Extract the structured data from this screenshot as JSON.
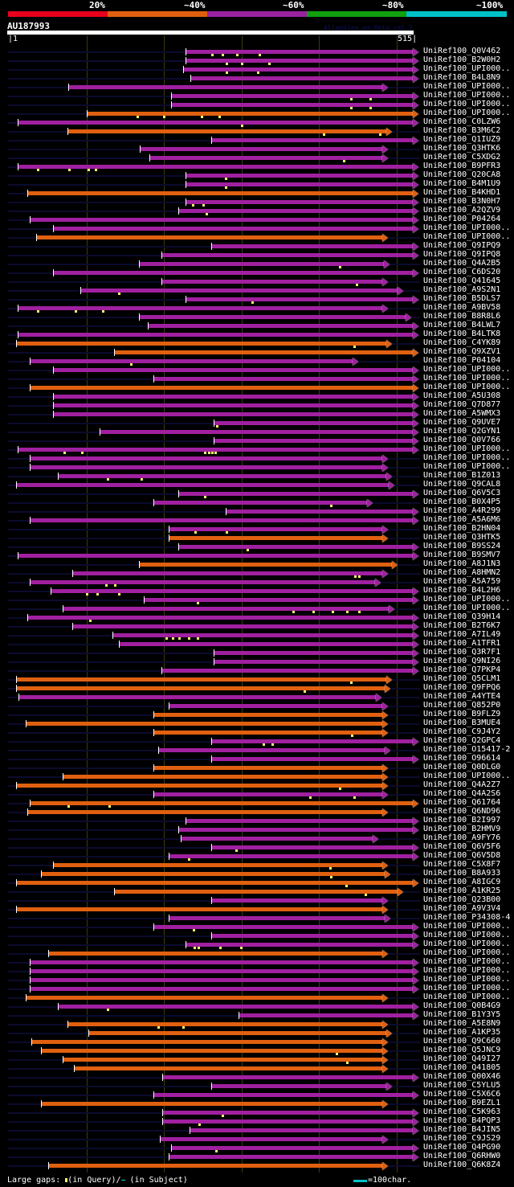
{
  "coverage_legend": {
    "labels": [
      "20%",
      "~40%",
      "~60%",
      "~80%",
      "~100%"
    ],
    "colors": [
      "#e8001c",
      "#e06010",
      "#9a22a0",
      "#10a010",
      "#00c0c8"
    ]
  },
  "query": {
    "id": "AU187993",
    "version": "AlignView.pm Beta rel.7",
    "start": "1",
    "end": "515",
    "length": 515
  },
  "colors": {
    "orange": "#e06010",
    "purple": "#a020a0",
    "track": "#0b0b2e",
    "gap": "#f8f070"
  },
  "hits": [
    {
      "label": "UniRef100_Q0V462",
      "start": 226,
      "end": 514,
      "color": "purple",
      "gaps": [
        260,
        273,
        291,
        320
      ]
    },
    {
      "label": "UniRef100_B2W0H2",
      "start": 226,
      "end": 514,
      "color": "purple",
      "gaps": [
        278,
        297,
        332
      ]
    },
    {
      "label": "UniRef100_UPI000..",
      "start": 223,
      "end": 514,
      "color": "purple",
      "gaps": [
        278,
        318
      ]
    },
    {
      "label": "UniRef100_B4L8N9",
      "start": 232,
      "end": 514,
      "color": "purple",
      "gaps": []
    },
    {
      "label": "UniRef100_UPI000..",
      "start": 77,
      "end": 475,
      "color": "purple",
      "gaps": []
    },
    {
      "label": "UniRef100_UPI000..",
      "start": 208,
      "end": 514,
      "color": "purple",
      "gaps": [
        436,
        460
      ]
    },
    {
      "label": "UniRef100_UPI000..",
      "start": 208,
      "end": 514,
      "color": "purple",
      "gaps": [
        436,
        460
      ]
    },
    {
      "label": "UniRef100_UPI000..",
      "start": 101,
      "end": 514,
      "color": "orange",
      "gaps": [
        165,
        198,
        246,
        269
      ]
    },
    {
      "label": "UniRef100_C0LZW6",
      "start": 13,
      "end": 514,
      "color": "purple",
      "gaps": [
        297
      ]
    },
    {
      "label": "UniRef100_B3M6C2",
      "start": 76,
      "end": 480,
      "color": "orange",
      "gaps": [
        401,
        472
      ]
    },
    {
      "label": "UniRef100_Q1IUZ9",
      "start": 259,
      "end": 514,
      "color": "purple",
      "gaps": []
    },
    {
      "label": "UniRef100_Q3HTK6",
      "start": 168,
      "end": 475,
      "color": "purple",
      "gaps": []
    },
    {
      "label": "UniRef100_C5XDG2",
      "start": 180,
      "end": 475,
      "color": "purple",
      "gaps": [
        426
      ]
    },
    {
      "label": "UniRef100_B9PFR3",
      "start": 13,
      "end": 514,
      "color": "purple",
      "gaps": [
        39,
        78,
        103,
        112
      ]
    },
    {
      "label": "UniRef100_Q20CA8",
      "start": 226,
      "end": 514,
      "color": "purple",
      "gaps": [
        277
      ]
    },
    {
      "label": "UniRef100_B4M1U9",
      "start": 226,
      "end": 514,
      "color": "purple",
      "gaps": [
        277
      ]
    },
    {
      "label": "UniRef100_B4KHD1",
      "start": 25,
      "end": 514,
      "color": "orange",
      "gaps": []
    },
    {
      "label": "UniRef100_B3N0H7",
      "start": 226,
      "end": 514,
      "color": "purple",
      "gaps": [
        235,
        248
      ]
    },
    {
      "label": "UniRef100_A2QZV9",
      "start": 217,
      "end": 514,
      "color": "purple",
      "gaps": [
        252
      ]
    },
    {
      "label": "UniRef100_P04264",
      "start": 28,
      "end": 514,
      "color": "purple",
      "gaps": []
    },
    {
      "label": "UniRef100_UPI000..",
      "start": 58,
      "end": 514,
      "color": "purple",
      "gaps": []
    },
    {
      "label": "UniRef100_UPI000..",
      "start": 37,
      "end": 475,
      "color": "orange",
      "gaps": []
    },
    {
      "label": "UniRef100_Q9IPQ9",
      "start": 259,
      "end": 514,
      "color": "purple",
      "gaps": []
    },
    {
      "label": "UniRef100_Q9IPQ8",
      "start": 195,
      "end": 514,
      "color": "purple",
      "gaps": []
    },
    {
      "label": "UniRef100_Q4A2B5",
      "start": 167,
      "end": 477,
      "color": "purple",
      "gaps": [
        421
      ]
    },
    {
      "label": "UniRef100_C6DS20",
      "start": 58,
      "end": 514,
      "color": "purple",
      "gaps": []
    },
    {
      "label": "UniRef100_Q41645",
      "start": 195,
      "end": 475,
      "color": "purple",
      "gaps": [
        443
      ]
    },
    {
      "label": "UniRef100_A9S2N1",
      "start": 93,
      "end": 495,
      "color": "purple",
      "gaps": [
        141
      ]
    },
    {
      "label": "UniRef100_B5DLS7",
      "start": 226,
      "end": 514,
      "color": "purple",
      "gaps": [
        310
      ]
    },
    {
      "label": "UniRef100_A9BV58",
      "start": 13,
      "end": 475,
      "color": "purple",
      "gaps": [
        39,
        86,
        121
      ]
    },
    {
      "label": "UniRef100_B8R8L6",
      "start": 167,
      "end": 505,
      "color": "purple",
      "gaps": []
    },
    {
      "label": "UniRef100_B4LWL7",
      "start": 178,
      "end": 514,
      "color": "purple",
      "gaps": []
    },
    {
      "label": "UniRef100_B4LTK8",
      "start": 13,
      "end": 514,
      "color": "purple",
      "gaps": []
    },
    {
      "label": "UniRef100_C4YK89",
      "start": 11,
      "end": 480,
      "color": "orange",
      "gaps": [
        440
      ]
    },
    {
      "label": "UniRef100_Q9XZV1",
      "start": 135,
      "end": 514,
      "color": "orange",
      "gaps": []
    },
    {
      "label": "UniRef100_P04104",
      "start": 28,
      "end": 438,
      "color": "purple",
      "gaps": [
        157
      ]
    },
    {
      "label": "UniRef100_UPI000..",
      "start": 58,
      "end": 514,
      "color": "purple",
      "gaps": []
    },
    {
      "label": "UniRef100_UPI000..",
      "start": 185,
      "end": 514,
      "color": "purple",
      "gaps": []
    },
    {
      "label": "UniRef100_UPI000..",
      "start": 28,
      "end": 514,
      "color": "orange",
      "gaps": []
    },
    {
      "label": "UniRef100_A5U308",
      "start": 58,
      "end": 514,
      "color": "purple",
      "gaps": []
    },
    {
      "label": "UniRef100_Q7D877",
      "start": 58,
      "end": 514,
      "color": "purple",
      "gaps": []
    },
    {
      "label": "UniRef100_A5WMX3",
      "start": 58,
      "end": 514,
      "color": "purple",
      "gaps": []
    },
    {
      "label": "UniRef100_Q9UVE7",
      "start": 262,
      "end": 514,
      "color": "purple",
      "gaps": [
        266
      ]
    },
    {
      "label": "UniRef100_Q2GYN1",
      "start": 117,
      "end": 514,
      "color": "purple",
      "gaps": []
    },
    {
      "label": "UniRef100_Q0V766",
      "start": 262,
      "end": 514,
      "color": "purple",
      "gaps": []
    },
    {
      "label": "UniRef100_UPI000..",
      "start": 13,
      "end": 514,
      "color": "purple",
      "gaps": [
        72,
        95,
        250,
        255,
        260,
        264
      ]
    },
    {
      "label": "UniRef100_UPI000..",
      "start": 28,
      "end": 475,
      "color": "purple",
      "gaps": []
    },
    {
      "label": "UniRef100_UPI000..",
      "start": 28,
      "end": 475,
      "color": "purple",
      "gaps": []
    },
    {
      "label": "UniRef100_B1Z013",
      "start": 64,
      "end": 480,
      "color": "purple",
      "gaps": [
        127,
        170
      ]
    },
    {
      "label": "UniRef100_Q9CAL8",
      "start": 11,
      "end": 483,
      "color": "purple",
      "gaps": []
    },
    {
      "label": "UniRef100_Q6V5C3",
      "start": 217,
      "end": 514,
      "color": "purple",
      "gaps": [
        250
      ]
    },
    {
      "label": "UniRef100_B0X4P5",
      "start": 185,
      "end": 456,
      "color": "purple",
      "gaps": [
        410
      ]
    },
    {
      "label": "UniRef100_A4R299",
      "start": 277,
      "end": 514,
      "color": "purple",
      "gaps": []
    },
    {
      "label": "UniRef100_A5A6M6",
      "start": 28,
      "end": 514,
      "color": "purple",
      "gaps": []
    },
    {
      "label": "UniRef100_B2HN04",
      "start": 205,
      "end": 475,
      "color": "purple",
      "gaps": [
        238,
        278
      ]
    },
    {
      "label": "UniRef100_Q3HTK5",
      "start": 205,
      "end": 475,
      "color": "orange",
      "gaps": []
    },
    {
      "label": "UniRef100_B9SS24",
      "start": 217,
      "end": 514,
      "color": "purple",
      "gaps": [
        304
      ]
    },
    {
      "label": "UniRef100_B9SMV7",
      "start": 13,
      "end": 514,
      "color": "purple",
      "gaps": []
    },
    {
      "label": "UniRef100_A8J1N3",
      "start": 167,
      "end": 488,
      "color": "orange",
      "gaps": []
    },
    {
      "label": "UniRef100_A8HMN2",
      "start": 82,
      "end": 475,
      "color": "purple",
      "gaps": [
        441,
        446
      ]
    },
    {
      "label": "UniRef100_A5A759",
      "start": 28,
      "end": 466,
      "color": "purple",
      "gaps": [
        125,
        136
      ]
    },
    {
      "label": "UniRef100_B4L2H6",
      "start": 55,
      "end": 514,
      "color": "purple",
      "gaps": [
        101,
        114,
        141
      ]
    },
    {
      "label": "UniRef100_UPI000..",
      "start": 173,
      "end": 514,
      "color": "purple",
      "gaps": [
        241
      ]
    },
    {
      "label": "UniRef100_UPI000..",
      "start": 70,
      "end": 483,
      "color": "purple",
      "gaps": [
        362,
        388,
        412,
        431,
        446
      ]
    },
    {
      "label": "UniRef100_Q39H14",
      "start": 25,
      "end": 514,
      "color": "purple",
      "gaps": [
        105
      ]
    },
    {
      "label": "UniRef100_B2T6K7",
      "start": 82,
      "end": 514,
      "color": "purple",
      "gaps": []
    },
    {
      "label": "UniRef100_A7IL49",
      "start": 133,
      "end": 514,
      "color": "purple",
      "gaps": [
        202,
        210,
        218,
        230,
        241
      ]
    },
    {
      "label": "UniRef100_A1TFR1",
      "start": 141,
      "end": 514,
      "color": "purple",
      "gaps": []
    },
    {
      "label": "UniRef100_Q3R7F1",
      "start": 262,
      "end": 514,
      "color": "purple",
      "gaps": []
    },
    {
      "label": "UniRef100_Q9NI26",
      "start": 262,
      "end": 514,
      "color": "purple",
      "gaps": []
    },
    {
      "label": "UniRef100_Q7PKP4",
      "start": 195,
      "end": 514,
      "color": "purple",
      "gaps": []
    },
    {
      "label": "UniRef100_Q5CLM1",
      "start": 11,
      "end": 480,
      "color": "orange",
      "gaps": [
        436
      ]
    },
    {
      "label": "UniRef100_Q9FPQ6",
      "start": 11,
      "end": 478,
      "color": "orange",
      "gaps": [
        377
      ]
    },
    {
      "label": "UniRef100_A4YTE4",
      "start": 14,
      "end": 467,
      "color": "purple",
      "gaps": []
    },
    {
      "label": "UniRef100_Q852P0",
      "start": 205,
      "end": 475,
      "color": "purple",
      "gaps": []
    },
    {
      "label": "UniRef100_B9FLZ9",
      "start": 185,
      "end": 475,
      "color": "orange",
      "gaps": []
    },
    {
      "label": "UniRef100_B3MUE4",
      "start": 23,
      "end": 475,
      "color": "orange",
      "gaps": []
    },
    {
      "label": "UniRef100_C9J4Y2",
      "start": 185,
      "end": 475,
      "color": "orange",
      "gaps": [
        437
      ]
    },
    {
      "label": "UniRef100_Q2GPC4",
      "start": 259,
      "end": 514,
      "color": "purple",
      "gaps": [
        325,
        336
      ]
    },
    {
      "label": "UniRef100_O15417-2",
      "start": 191,
      "end": 478,
      "color": "purple",
      "gaps": []
    },
    {
      "label": "UniRef100_O96614",
      "start": 259,
      "end": 514,
      "color": "purple",
      "gaps": []
    },
    {
      "label": "UniRef100_Q0DLG0",
      "start": 185,
      "end": 475,
      "color": "orange",
      "gaps": []
    },
    {
      "label": "UniRef100_UPI000..",
      "start": 70,
      "end": 475,
      "color": "orange",
      "gaps": []
    },
    {
      "label": "UniRef100_Q4A2Z7",
      "start": 11,
      "end": 475,
      "color": "orange",
      "gaps": [
        421
      ]
    },
    {
      "label": "UniRef100_Q4A2S6",
      "start": 185,
      "end": 475,
      "color": "purple",
      "gaps": [
        384,
        440
      ]
    },
    {
      "label": "UniRef100_Q61764",
      "start": 28,
      "end": 514,
      "color": "orange",
      "gaps": [
        77,
        129
      ]
    },
    {
      "label": "UniRef100_Q6ND96",
      "start": 25,
      "end": 475,
      "color": "orange",
      "gaps": []
    },
    {
      "label": "UniRef100_B2I997",
      "start": 226,
      "end": 514,
      "color": "purple",
      "gaps": []
    },
    {
      "label": "UniRef100_B2HMV9",
      "start": 217,
      "end": 514,
      "color": "purple",
      "gaps": []
    },
    {
      "label": "UniRef100_A9FY76",
      "start": 220,
      "end": 463,
      "color": "purple",
      "gaps": []
    },
    {
      "label": "UniRef100_Q6V5F6",
      "start": 259,
      "end": 514,
      "color": "purple",
      "gaps": [
        290
      ]
    },
    {
      "label": "UniRef100_Q6V5D8",
      "start": 205,
      "end": 514,
      "color": "purple",
      "gaps": [
        230
      ]
    },
    {
      "label": "UniRef100_C5X8F7",
      "start": 58,
      "end": 475,
      "color": "orange",
      "gaps": [
        409
      ]
    },
    {
      "label": "UniRef100_B8A933",
      "start": 43,
      "end": 478,
      "color": "orange",
      "gaps": [
        410
      ]
    },
    {
      "label": "UniRef100_A8IGC9",
      "start": 11,
      "end": 514,
      "color": "orange",
      "gaps": [
        430
      ]
    },
    {
      "label": "UniRef100_A1KR25",
      "start": 135,
      "end": 495,
      "color": "orange",
      "gaps": [
        454
      ]
    },
    {
      "label": "UniRef100_Q23B00",
      "start": 259,
      "end": 475,
      "color": "purple",
      "gaps": []
    },
    {
      "label": "UniRef100_A9V3V4",
      "start": 11,
      "end": 475,
      "color": "orange",
      "gaps": []
    },
    {
      "label": "UniRef100_P34308-4",
      "start": 205,
      "end": 478,
      "color": "purple",
      "gaps": []
    },
    {
      "label": "UniRef100_UPI000..",
      "start": 185,
      "end": 514,
      "color": "purple",
      "gaps": [
        236
      ]
    },
    {
      "label": "UniRef100_UPI000..",
      "start": 259,
      "end": 514,
      "color": "purple",
      "gaps": []
    },
    {
      "label": "UniRef100_UPI000..",
      "start": 226,
      "end": 514,
      "color": "purple",
      "gaps": [
        237,
        242,
        270,
        296
      ]
    },
    {
      "label": "UniRef100_UPI000..",
      "start": 52,
      "end": 475,
      "color": "orange",
      "gaps": []
    },
    {
      "label": "UniRef100_UPI000..",
      "start": 28,
      "end": 514,
      "color": "purple",
      "gaps": []
    },
    {
      "label": "UniRef100_UPI000..",
      "start": 28,
      "end": 514,
      "color": "purple",
      "gaps": []
    },
    {
      "label": "UniRef100_UPI000..",
      "start": 28,
      "end": 514,
      "color": "purple",
      "gaps": []
    },
    {
      "label": "UniRef100_UPI000..",
      "start": 28,
      "end": 514,
      "color": "purple",
      "gaps": []
    },
    {
      "label": "UniRef100_UPI000..",
      "start": 23,
      "end": 475,
      "color": "orange",
      "gaps": []
    },
    {
      "label": "UniRef100_Q0B4G9",
      "start": 64,
      "end": 514,
      "color": "purple",
      "gaps": [
        127
      ]
    },
    {
      "label": "UniRef100_B1Y3Y5",
      "start": 293,
      "end": 514,
      "color": "purple",
      "gaps": []
    },
    {
      "label": "UniRef100_A5E8N9",
      "start": 76,
      "end": 475,
      "color": "orange",
      "gaps": [
        191,
        223
      ]
    },
    {
      "label": "UniRef100_A1KP35",
      "start": 103,
      "end": 480,
      "color": "orange",
      "gaps": []
    },
    {
      "label": "UniRef100_Q9C660",
      "start": 31,
      "end": 475,
      "color": "orange",
      "gaps": []
    },
    {
      "label": "UniRef100_Q5JNC9",
      "start": 43,
      "end": 475,
      "color": "orange",
      "gaps": [
        417
      ]
    },
    {
      "label": "UniRef100_Q49I27",
      "start": 70,
      "end": 475,
      "color": "orange",
      "gaps": [
        431
      ]
    },
    {
      "label": "UniRef100_Q41805",
      "start": 84,
      "end": 475,
      "color": "orange",
      "gaps": []
    },
    {
      "label": "UniRef100_Q00X46",
      "start": 196,
      "end": 514,
      "color": "purple",
      "gaps": []
    },
    {
      "label": "UniRef100_C5YLU5",
      "start": 259,
      "end": 480,
      "color": "purple",
      "gaps": []
    },
    {
      "label": "UniRef100_C5X6C6",
      "start": 185,
      "end": 514,
      "color": "purple",
      "gaps": []
    },
    {
      "label": "UniRef100_B9EZL1",
      "start": 43,
      "end": 475,
      "color": "orange",
      "gaps": []
    },
    {
      "label": "UniRef100_C5K963",
      "start": 196,
      "end": 514,
      "color": "purple",
      "gaps": [
        273
      ]
    },
    {
      "label": "UniRef100_B4PQP3",
      "start": 196,
      "end": 514,
      "color": "purple",
      "gaps": [
        243
      ]
    },
    {
      "label": "UniRef100_B4JIN5",
      "start": 231,
      "end": 514,
      "color": "purple",
      "gaps": []
    },
    {
      "label": "UniRef100_C9JS29",
      "start": 193,
      "end": 475,
      "color": "purple",
      "gaps": []
    },
    {
      "label": "UniRef100_Q4PG90",
      "start": 208,
      "end": 514,
      "color": "purple",
      "gaps": [
        265
      ]
    },
    {
      "label": "UniRef100_Q6RHW0",
      "start": 205,
      "end": 514,
      "color": "purple",
      "gaps": []
    },
    {
      "label": "UniRef100_Q6K8Z4",
      "start": 52,
      "end": 475,
      "color": "orange",
      "gaps": []
    }
  ],
  "footer": {
    "gaps_prefix": "Large gaps:",
    "in_query": "(in Query)/",
    "in_subject": "(in Subject)",
    "scale_label": "=100char."
  }
}
